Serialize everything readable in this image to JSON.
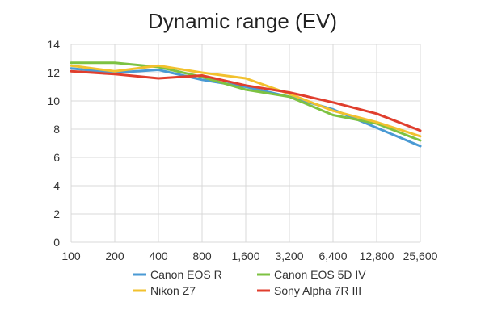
{
  "chart_data": {
    "type": "line",
    "title": "Dynamic range (EV)",
    "xlabel": "",
    "ylabel": "",
    "categories": [
      "100",
      "200",
      "400",
      "800",
      "1,600",
      "3,200",
      "6,400",
      "12,800",
      "25,600"
    ],
    "ylim": [
      0,
      14
    ],
    "yticks": [
      0,
      2,
      4,
      6,
      8,
      10,
      12,
      14
    ],
    "grid": true,
    "legend_position": "bottom",
    "series": [
      {
        "name": "Canon EOS R",
        "color": "#4a9ad4",
        "values": [
          12.3,
          12.0,
          12.2,
          11.5,
          11.0,
          10.3,
          9.4,
          8.1,
          6.8
        ]
      },
      {
        "name": "Canon EOS 5D IV",
        "color": "#7dc242",
        "values": [
          12.7,
          12.7,
          12.4,
          11.7,
          10.8,
          10.3,
          9.0,
          8.4,
          7.2
        ]
      },
      {
        "name": "Nikon Z7",
        "color": "#f2c12e",
        "values": [
          12.5,
          12.1,
          12.5,
          12.0,
          11.6,
          10.5,
          9.3,
          8.5,
          7.5
        ]
      },
      {
        "name": "Sony Alpha 7R III",
        "color": "#e03e2d",
        "values": [
          12.1,
          11.9,
          11.6,
          11.8,
          11.1,
          10.6,
          9.9,
          9.1,
          7.9
        ]
      }
    ]
  }
}
